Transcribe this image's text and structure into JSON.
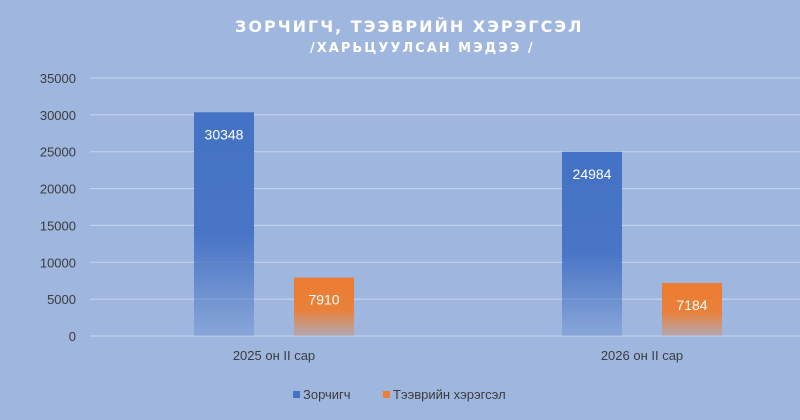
{
  "chart_data": {
    "type": "bar",
    "title": "ЗОРЧИГЧ,  ТЭЭВРИЙН ХЭРЭГСЭЛ",
    "subtitle": "/ХАРЬЦУУЛСАН МЭДЭЭ /",
    "categories": [
      "2025 он II сар",
      "2026 он II сар"
    ],
    "series": [
      {
        "name": "Зорчигч",
        "values": [
          30348,
          24984
        ],
        "color": "#4472c4"
      },
      {
        "name": "Тээврийн хэрэгсэл",
        "values": [
          7910,
          7184
        ],
        "color": "#ed7d31"
      }
    ],
    "ylim": [
      0,
      35000
    ],
    "yticks": [
      0,
      5000,
      10000,
      15000,
      20000,
      25000,
      30000,
      35000
    ],
    "grid": true,
    "legend": "bottom",
    "data_labels": true,
    "background": "#9fb7df",
    "gridline_color": "#c9d6ee"
  }
}
